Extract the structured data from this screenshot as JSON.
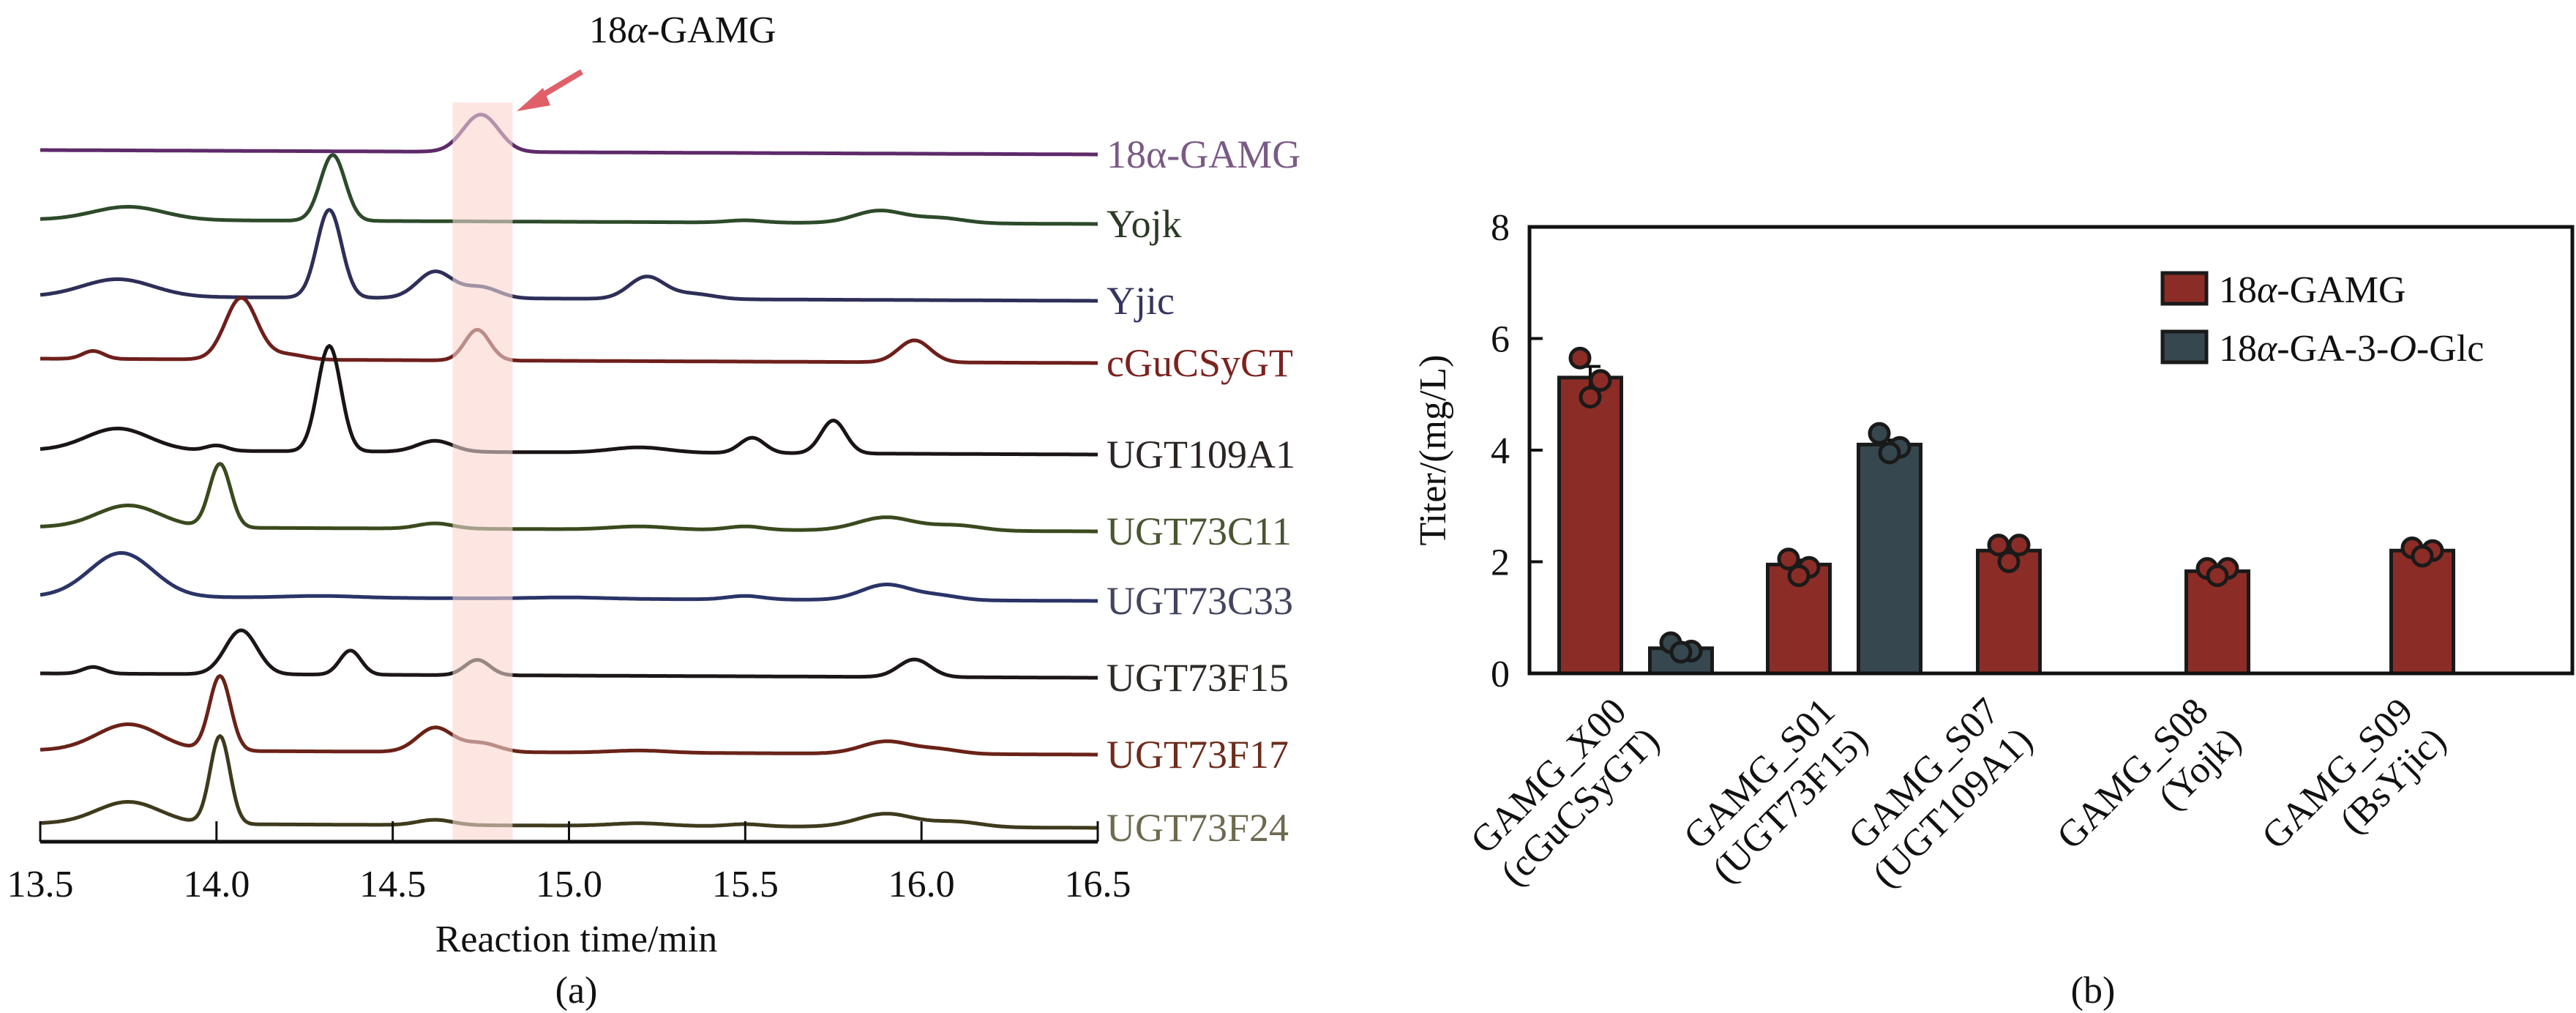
{
  "chart_data": [
    {
      "type": "line",
      "panel_label": "(a)",
      "title": "",
      "annotation": {
        "text_prefix": "18",
        "text_alpha": "α",
        "text_suffix": "-GAMG",
        "arrow_color": "#e0606a",
        "highlight_range": [
          14.67,
          14.84
        ],
        "highlight_color": "#fde6e2"
      },
      "xlabel": "Reaction time/min",
      "ylabel": "",
      "xlim": [
        13.5,
        16.5
      ],
      "xticks": [
        "13.5",
        "14.0",
        "14.5",
        "15.0",
        "15.5",
        "16.0",
        "16.5"
      ],
      "xtick_values": [
        13.5,
        14.0,
        14.5,
        15.0,
        15.5,
        16.0,
        16.5
      ],
      "legend_placement": "right-inline",
      "series": [
        {
          "name": "18α-GAMG",
          "color": "#5e2a6a",
          "label_color": "#7a5a85",
          "peaks": [
            {
              "t": 14.75,
              "h": 0.85,
              "w": 0.05
            }
          ]
        },
        {
          "name": "Yojk",
          "color": "#2d4a2a",
          "label_color": "#2b3a26",
          "peaks": [
            {
              "t": 13.75,
              "h": 0.3,
              "w": 0.1
            },
            {
              "t": 14.33,
              "h": 1.5,
              "w": 0.035
            },
            {
              "t": 15.5,
              "h": 0.05,
              "w": 0.05
            },
            {
              "t": 15.88,
              "h": 0.28,
              "w": 0.07
            },
            {
              "t": 16.05,
              "h": 0.12,
              "w": 0.07
            }
          ]
        },
        {
          "name": "Yjic",
          "color": "#2e2f58",
          "label_color": "#35355e",
          "peaks": [
            {
              "t": 13.72,
              "h": 0.4,
              "w": 0.1
            },
            {
              "t": 14.32,
              "h": 2.0,
              "w": 0.035
            },
            {
              "t": 14.62,
              "h": 0.6,
              "w": 0.05
            },
            {
              "t": 14.75,
              "h": 0.25,
              "w": 0.05
            },
            {
              "t": 15.22,
              "h": 0.5,
              "w": 0.05
            },
            {
              "t": 15.35,
              "h": 0.12,
              "w": 0.06
            }
          ]
        },
        {
          "name": "cGuCSyGT",
          "color": "#6e1f1c",
          "label_color": "#7b2320",
          "peaks": [
            {
              "t": 13.65,
              "h": 0.18,
              "w": 0.03
            },
            {
              "t": 14.07,
              "h": 1.4,
              "w": 0.045
            },
            {
              "t": 14.2,
              "h": 0.12,
              "w": 0.05
            },
            {
              "t": 14.74,
              "h": 0.7,
              "w": 0.035
            },
            {
              "t": 15.98,
              "h": 0.5,
              "w": 0.045
            }
          ]
        },
        {
          "name": "UGT109A1",
          "color": "#1a1414",
          "label_color": "#2a2422",
          "peaks": [
            {
              "t": 13.72,
              "h": 0.5,
              "w": 0.09
            },
            {
              "t": 14.0,
              "h": 0.12,
              "w": 0.03
            },
            {
              "t": 14.32,
              "h": 2.4,
              "w": 0.033
            },
            {
              "t": 14.62,
              "h": 0.25,
              "w": 0.05
            },
            {
              "t": 15.2,
              "h": 0.12,
              "w": 0.08
            },
            {
              "t": 15.52,
              "h": 0.35,
              "w": 0.035
            },
            {
              "t": 15.75,
              "h": 0.75,
              "w": 0.035
            }
          ]
        },
        {
          "name": "UGT73C11",
          "color": "#3a4a1e",
          "label_color": "#4a5532",
          "peaks": [
            {
              "t": 13.75,
              "h": 0.5,
              "w": 0.09
            },
            {
              "t": 14.01,
              "h": 1.45,
              "w": 0.03
            },
            {
              "t": 14.62,
              "h": 0.12,
              "w": 0.05
            },
            {
              "t": 15.2,
              "h": 0.07,
              "w": 0.08
            },
            {
              "t": 15.5,
              "h": 0.08,
              "w": 0.05
            },
            {
              "t": 15.9,
              "h": 0.3,
              "w": 0.08
            },
            {
              "t": 16.1,
              "h": 0.12,
              "w": 0.07
            }
          ]
        },
        {
          "name": "UGT73C33",
          "color": "#2a3468",
          "label_color": "#43455f",
          "peaks": [
            {
              "t": 13.73,
              "h": 1.0,
              "w": 0.09
            },
            {
              "t": 14.3,
              "h": 0.04,
              "w": 0.1
            },
            {
              "t": 15.0,
              "h": 0.03,
              "w": 0.1
            },
            {
              "t": 15.5,
              "h": 0.08,
              "w": 0.05
            },
            {
              "t": 15.9,
              "h": 0.35,
              "w": 0.07
            },
            {
              "t": 16.05,
              "h": 0.1,
              "w": 0.06
            }
          ]
        },
        {
          "name": "UGT73F15",
          "color": "#1c1616",
          "label_color": "#2e2a26",
          "peaks": [
            {
              "t": 13.65,
              "h": 0.15,
              "w": 0.03
            },
            {
              "t": 14.07,
              "h": 1.0,
              "w": 0.045
            },
            {
              "t": 14.38,
              "h": 0.55,
              "w": 0.03
            },
            {
              "t": 14.74,
              "h": 0.35,
              "w": 0.035
            },
            {
              "t": 15.98,
              "h": 0.4,
              "w": 0.045
            }
          ]
        },
        {
          "name": "UGT73F17",
          "color": "#6a2218",
          "label_color": "#6e2c1c",
          "peaks": [
            {
              "t": 13.75,
              "h": 0.6,
              "w": 0.09
            },
            {
              "t": 14.01,
              "h": 1.7,
              "w": 0.03
            },
            {
              "t": 14.62,
              "h": 0.55,
              "w": 0.05
            },
            {
              "t": 14.75,
              "h": 0.2,
              "w": 0.05
            },
            {
              "t": 15.2,
              "h": 0.05,
              "w": 0.08
            },
            {
              "t": 15.9,
              "h": 0.28,
              "w": 0.07
            },
            {
              "t": 16.05,
              "h": 0.1,
              "w": 0.06
            }
          ]
        },
        {
          "name": "UGT73F24",
          "color": "#3e3a1c",
          "label_color": "#6e6a50",
          "peaks": [
            {
              "t": 13.75,
              "h": 0.5,
              "w": 0.09
            },
            {
              "t": 14.01,
              "h": 2.0,
              "w": 0.028
            },
            {
              "t": 14.62,
              "h": 0.12,
              "w": 0.05
            },
            {
              "t": 15.2,
              "h": 0.06,
              "w": 0.08
            },
            {
              "t": 15.5,
              "h": 0.05,
              "w": 0.05
            },
            {
              "t": 15.9,
              "h": 0.3,
              "w": 0.08
            },
            {
              "t": 16.1,
              "h": 0.12,
              "w": 0.07
            }
          ]
        }
      ]
    },
    {
      "type": "bar",
      "panel_label": "(b)",
      "title": "",
      "xlabel": "",
      "ylabel": "Titer/(mg/L)",
      "ylim": [
        0,
        8
      ],
      "yticks": [
        "0",
        "2",
        "4",
        "6",
        "8"
      ],
      "ytick_values": [
        0,
        2,
        4,
        6,
        8
      ],
      "grid": false,
      "legend_placement": "top-right",
      "categories": [
        {
          "line1": "GAMG_X00",
          "line2": "(cGuCSyGT)"
        },
        {
          "line1": "GAMG_S01",
          "line2": "(UGT73F15)"
        },
        {
          "line1": "GAMG_S07",
          "line2": "(UGT109A1)"
        },
        {
          "line1": "GAMG_S08",
          "line2": "(Yojk)"
        },
        {
          "line1": "GAMG_S09",
          "line2": "(BsYjic)"
        }
      ],
      "series": [
        {
          "name_prefix": "18",
          "name_alpha": "α",
          "name_mid": "-GAMG",
          "name_italic": "",
          "name_suffix": "",
          "color": "#8b2d26",
          "values": [
            5.3,
            1.95,
            2.2,
            1.83,
            2.2
          ],
          "errors": [
            0.2,
            0.08,
            0.08,
            0.05,
            0.06
          ],
          "points": [
            [
              5.65,
              5.25,
              4.95
            ],
            [
              2.05,
              1.9,
              1.75
            ],
            [
              2.3,
              2.3,
              2.0
            ],
            [
              1.88,
              1.88,
              1.75
            ],
            [
              2.25,
              2.2,
              2.1
            ]
          ]
        },
        {
          "name_prefix": "18",
          "name_alpha": "α",
          "name_mid": "-GA-3-",
          "name_italic": "O",
          "name_suffix": "-Glc",
          "color": "#36474f",
          "values": [
            0.45,
            4.1,
            null,
            null,
            null
          ],
          "errors": [
            0.05,
            0.08,
            null,
            null,
            null
          ],
          "points": [
            [
              0.55,
              0.4,
              0.38
            ],
            [
              4.3,
              4.05,
              3.95
            ],
            [],
            [],
            []
          ]
        }
      ]
    }
  ]
}
